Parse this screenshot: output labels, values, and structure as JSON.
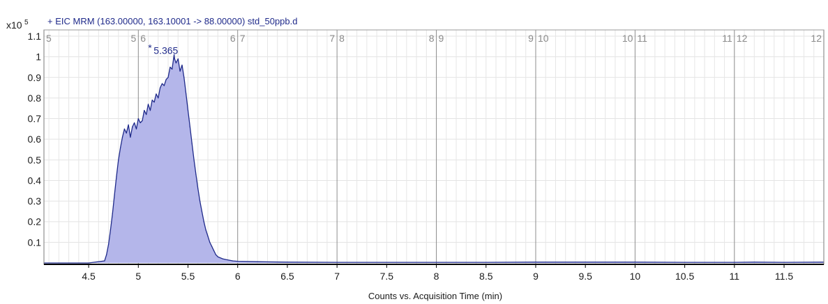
{
  "chart_data": {
    "type": "area",
    "title": "+ EIC MRM (163.00000, 163.10001 -> 88.00000) std_50ppb.d",
    "xlabel": "Counts vs. Acquisition Time (min)",
    "ylabel": "",
    "y_exponent_label": "x10",
    "y_exponent_power": "5",
    "xlim": [
      4.05,
      11.9
    ],
    "ylim": [
      0,
      1.1
    ],
    "x_ticks": [
      4.5,
      5,
      5.5,
      6,
      6.5,
      7,
      7.5,
      8,
      8.5,
      9,
      9.5,
      10,
      10.5,
      11,
      11.5
    ],
    "x_tick_labels": [
      "4.5",
      "5",
      "5.5",
      "6",
      "6.5",
      "7",
      "7.5",
      "8",
      "8.5",
      "9",
      "9.5",
      "10",
      "10.5",
      "11",
      "11.5"
    ],
    "y_ticks": [
      0.1,
      0.2,
      0.3,
      0.4,
      0.5,
      0.6,
      0.7,
      0.8,
      0.9,
      1,
      1.1
    ],
    "y_tick_labels": [
      "0.1",
      "0.2",
      "0.3",
      "0.4",
      "0.5",
      "0.6",
      "0.7",
      "0.8",
      "0.9",
      "1",
      "1.1"
    ],
    "segment_lines": [
      5,
      6,
      7,
      8,
      9,
      10,
      11
    ],
    "segment_labels": [
      {
        "x": 4.05,
        "text": "5",
        "align": "start"
      },
      {
        "x": 5,
        "text": "5",
        "align": "end"
      },
      {
        "x": 5,
        "text": "6",
        "align": "start"
      },
      {
        "x": 6,
        "text": "6",
        "align": "end"
      },
      {
        "x": 6,
        "text": "7",
        "align": "start"
      },
      {
        "x": 7,
        "text": "7",
        "align": "end"
      },
      {
        "x": 7,
        "text": "8",
        "align": "start"
      },
      {
        "x": 8,
        "text": "8",
        "align": "end"
      },
      {
        "x": 8,
        "text": "9",
        "align": "start"
      },
      {
        "x": 9,
        "text": "9",
        "align": "end"
      },
      {
        "x": 9,
        "text": "10",
        "align": "start"
      },
      {
        "x": 10,
        "text": "10",
        "align": "end"
      },
      {
        "x": 10,
        "text": "11",
        "align": "start"
      },
      {
        "x": 11,
        "text": "11",
        "align": "end"
      },
      {
        "x": 11,
        "text": "12",
        "align": "start"
      },
      {
        "x": 11.9,
        "text": "12",
        "align": "end"
      }
    ],
    "peak_label": {
      "x": 5.365,
      "y": 1.02,
      "text": "5.365"
    },
    "grid": true,
    "fill_color": "#b4b6ea",
    "line_color": "#1f2a8a",
    "segment_line_color": "#8c8c8c",
    "series": [
      {
        "x": [
          4.05,
          4.5,
          4.66,
          4.68,
          4.7,
          4.72,
          4.74,
          4.76,
          4.78,
          4.8,
          4.82,
          4.84,
          4.86,
          4.88,
          4.9,
          4.92,
          4.94,
          4.96,
          4.98,
          5.0,
          5.02,
          5.04,
          5.06,
          5.08,
          5.1,
          5.12,
          5.14,
          5.16,
          5.18,
          5.2,
          5.22,
          5.24,
          5.26,
          5.28,
          5.3,
          5.32,
          5.34,
          5.36,
          5.365,
          5.38,
          5.4,
          5.42,
          5.44,
          5.46,
          5.48,
          5.5,
          5.52,
          5.54,
          5.56,
          5.58,
          5.6,
          5.62,
          5.64,
          5.66,
          5.68,
          5.7,
          5.72,
          5.74,
          5.76,
          5.78,
          5.8,
          5.85,
          5.9,
          5.95,
          6.0,
          6.2,
          6.5,
          7.0,
          7.5,
          8.0,
          8.5,
          9.0,
          9.5,
          10.0,
          10.5,
          11.0,
          11.2,
          11.5,
          11.9
        ],
        "y": [
          0.0,
          0.0,
          0.01,
          0.04,
          0.09,
          0.16,
          0.24,
          0.33,
          0.42,
          0.5,
          0.56,
          0.61,
          0.65,
          0.63,
          0.67,
          0.61,
          0.66,
          0.68,
          0.65,
          0.7,
          0.68,
          0.69,
          0.74,
          0.72,
          0.77,
          0.74,
          0.79,
          0.78,
          0.82,
          0.8,
          0.85,
          0.87,
          0.86,
          0.89,
          0.9,
          0.95,
          0.94,
          1.01,
          0.99,
          0.97,
          0.99,
          0.93,
          0.96,
          0.9,
          0.82,
          0.74,
          0.66,
          0.58,
          0.5,
          0.43,
          0.36,
          0.3,
          0.25,
          0.2,
          0.16,
          0.13,
          0.1,
          0.08,
          0.06,
          0.04,
          0.03,
          0.02,
          0.015,
          0.01,
          0.008,
          0.006,
          0.004,
          0.003,
          0.003,
          0.003,
          0.003,
          0.004,
          0.004,
          0.004,
          0.003,
          0.003,
          0.004,
          0.003,
          0.004
        ]
      }
    ]
  }
}
